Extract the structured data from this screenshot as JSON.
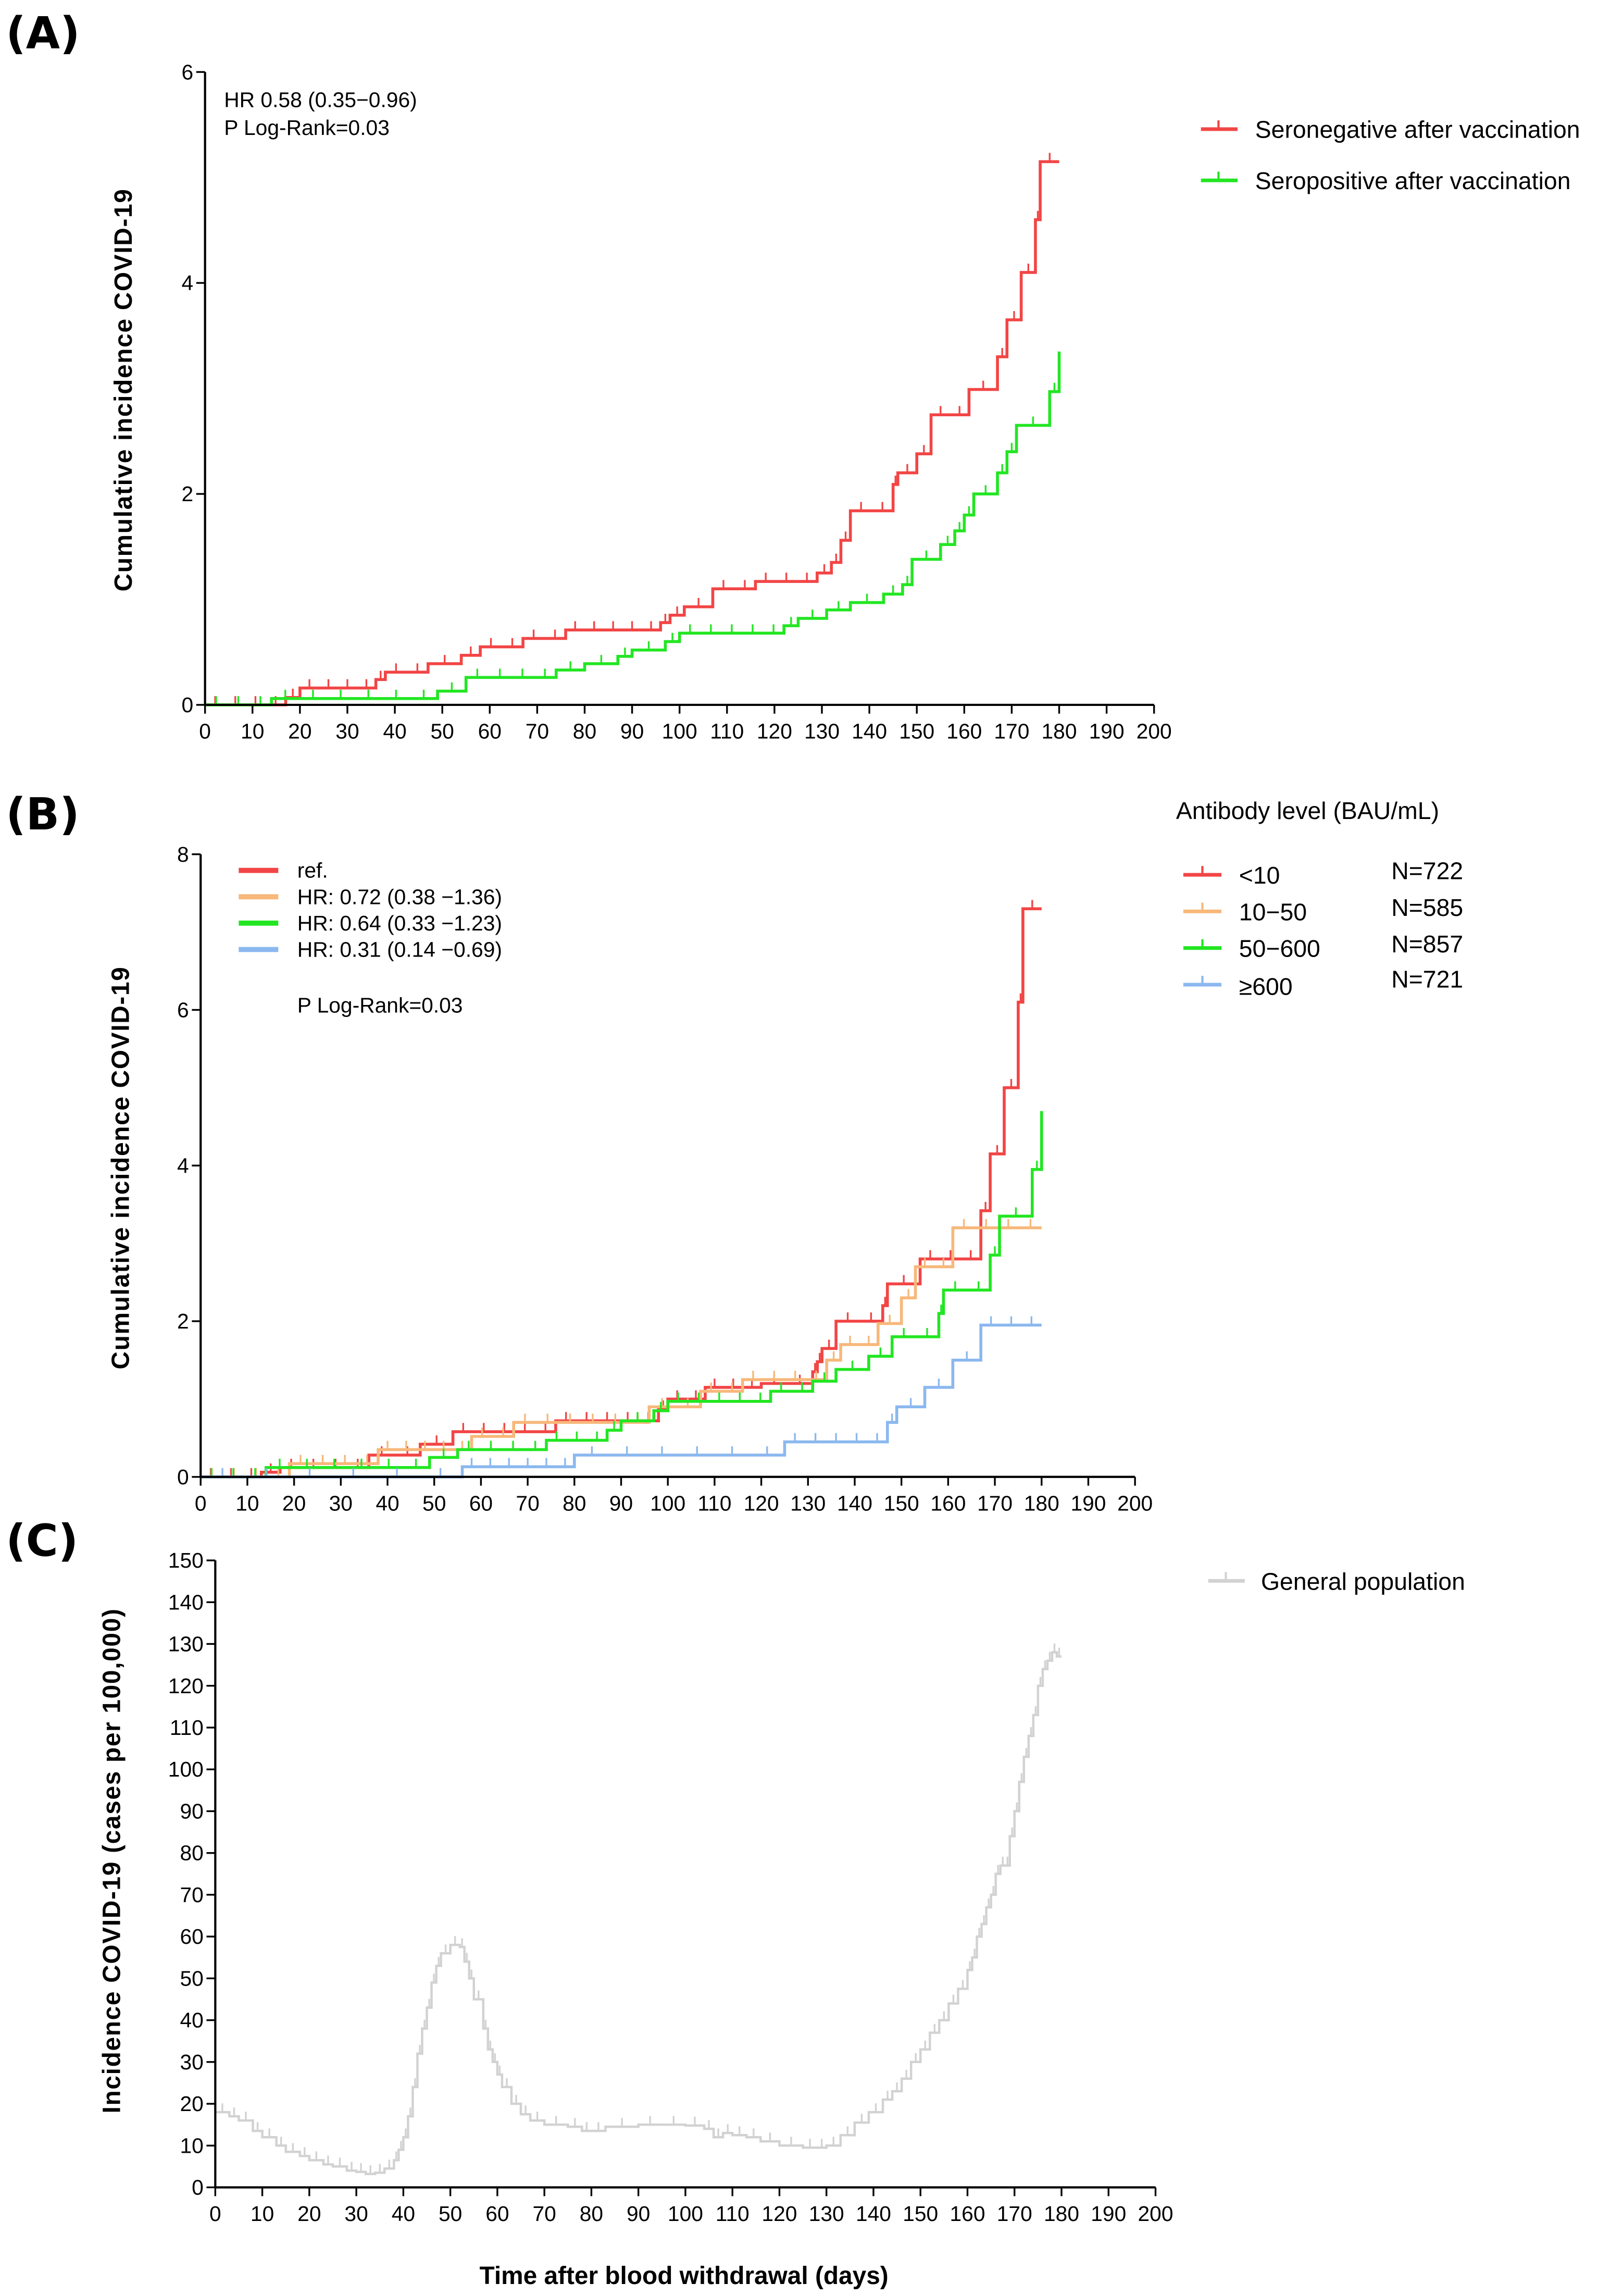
{
  "chart_data": [
    {
      "type": "line",
      "panel": "(A)",
      "title": "",
      "xlabel": "",
      "ylabel": "Cumulative incidence COVID-19",
      "xlim": [
        0,
        200
      ],
      "ylim": [
        0,
        6
      ],
      "xticks": [
        0,
        10,
        20,
        30,
        40,
        50,
        60,
        70,
        80,
        90,
        100,
        110,
        120,
        130,
        140,
        150,
        160,
        170,
        180,
        190,
        200
      ],
      "yticks": [
        0,
        2,
        4,
        6
      ],
      "grid": false,
      "annotations": [
        "HR 0.58 (0.35−0.96)",
        "P Log-Rank=0.03"
      ],
      "legend_position": "top-right",
      "series": [
        {
          "name": "Seronegative after vaccination",
          "color": "#f24545",
          "x": [
            0,
            17,
            20,
            36,
            38,
            47,
            54,
            58,
            67,
            76,
            96,
            98,
            101,
            107,
            116,
            129,
            132,
            134,
            136,
            145,
            146,
            150,
            153,
            161,
            167,
            169,
            172,
            175,
            176,
            180
          ],
          "y": [
            0,
            0.07,
            0.16,
            0.24,
            0.31,
            0.39,
            0.47,
            0.55,
            0.63,
            0.71,
            0.78,
            0.85,
            0.93,
            1.1,
            1.17,
            1.25,
            1.35,
            1.56,
            1.84,
            2.09,
            2.2,
            2.38,
            2.75,
            2.99,
            3.3,
            3.65,
            4.1,
            4.6,
            5.15,
            5.15
          ]
        },
        {
          "name": "Seropositive after vaccination",
          "color": "#22e622",
          "x": [
            0,
            14,
            49,
            55,
            74,
            80,
            87,
            90,
            97,
            100,
            122,
            125,
            131,
            136,
            143,
            147,
            149,
            155,
            158,
            160,
            162,
            167,
            169,
            171,
            178,
            180
          ],
          "y": [
            0,
            0.06,
            0.13,
            0.26,
            0.33,
            0.39,
            0.46,
            0.52,
            0.6,
            0.68,
            0.75,
            0.82,
            0.9,
            0.97,
            1.05,
            1.14,
            1.38,
            1.52,
            1.65,
            1.8,
            2.0,
            2.2,
            2.4,
            2.65,
            2.97,
            3.35
          ]
        }
      ]
    },
    {
      "type": "line",
      "panel": "(B)",
      "title": "",
      "xlabel": "",
      "ylabel": "Cumulative incidence COVID-19",
      "xlim": [
        0,
        200
      ],
      "ylim": [
        0,
        8
      ],
      "xticks": [
        0,
        10,
        20,
        30,
        40,
        50,
        60,
        70,
        80,
        90,
        100,
        110,
        120,
        130,
        140,
        150,
        160,
        170,
        180,
        190,
        200
      ],
      "yticks": [
        0,
        2,
        4,
        6,
        8
      ],
      "grid": false,
      "hr_legend": [
        "ref.",
        "HR: 0.72 (0.38 −1.36)",
        "HR: 0.64 (0.33 −1.23)",
        "HR: 0.31 (0.14 −0.69)"
      ],
      "annotations": [
        "P  Log-Rank=0.03"
      ],
      "legend_title": "Antibody level (BAU/mL)",
      "legend_position": "top-right",
      "series": [
        {
          "name": "<10",
          "n": "N=722",
          "color": "#f24545",
          "x": [
            0,
            13,
            17,
            36,
            47,
            54,
            76,
            98,
            100,
            108,
            120,
            131,
            132,
            133,
            136,
            146,
            147,
            154,
            167,
            169,
            172,
            175,
            176,
            180
          ],
          "y": [
            0,
            0.06,
            0.12,
            0.28,
            0.42,
            0.58,
            0.72,
            0.87,
            1.0,
            1.15,
            1.2,
            1.35,
            1.48,
            1.65,
            2.0,
            2.2,
            2.48,
            2.8,
            3.42,
            4.15,
            5.0,
            6.1,
            7.3,
            7.3
          ]
        },
        {
          "name": "10−50",
          "n": "N=585",
          "color": "#f7b87a",
          "x": [
            0,
            19,
            38,
            58,
            67,
            96,
            107,
            116,
            134,
            137,
            145,
            150,
            153,
            161,
            180
          ],
          "y": [
            0,
            0.17,
            0.35,
            0.52,
            0.7,
            0.9,
            1.1,
            1.25,
            1.5,
            1.7,
            1.97,
            2.3,
            2.7,
            3.2,
            3.2
          ]
        },
        {
          "name": "50−600",
          "n": "N=857",
          "color": "#22e622",
          "x": [
            0,
            14,
            49,
            55,
            74,
            87,
            90,
            97,
            100,
            122,
            131,
            136,
            143,
            148,
            158,
            159,
            169,
            171,
            178,
            180
          ],
          "y": [
            0,
            0.12,
            0.25,
            0.35,
            0.47,
            0.6,
            0.72,
            0.85,
            0.97,
            1.1,
            1.23,
            1.38,
            1.55,
            1.8,
            2.1,
            2.4,
            2.85,
            3.35,
            3.95,
            4.7
          ]
        },
        {
          "name": "≥600",
          "n": "N=721",
          "color": "#8bb8ef",
          "x": [
            0,
            56,
            80,
            125,
            147,
            149,
            155,
            161,
            167,
            180
          ],
          "y": [
            0,
            0.13,
            0.28,
            0.45,
            0.7,
            0.9,
            1.15,
            1.5,
            1.95,
            1.95
          ]
        }
      ]
    },
    {
      "type": "line",
      "panel": "(C)",
      "title": "",
      "xlabel": "Time after blood withdrawal (days)",
      "ylabel": "Incidence  COVID-19 (cases per 100,000)",
      "xlim": [
        0,
        200
      ],
      "ylim": [
        0,
        150
      ],
      "xticks": [
        0,
        10,
        20,
        30,
        40,
        50,
        60,
        70,
        80,
        90,
        100,
        110,
        120,
        130,
        140,
        150,
        160,
        170,
        180,
        190,
        200
      ],
      "yticks": [
        0,
        10,
        20,
        30,
        40,
        50,
        60,
        70,
        80,
        90,
        100,
        110,
        120,
        130,
        140,
        150
      ],
      "grid": false,
      "legend_position": "top-right",
      "series": [
        {
          "name": "General population",
          "color": "#d2d2d2",
          "x": [
            0,
            3,
            5,
            8,
            10,
            13,
            15,
            18,
            20,
            23,
            25,
            28,
            30,
            32,
            34,
            36,
            38,
            39,
            40,
            41,
            42,
            43,
            44,
            45,
            46,
            47,
            48,
            50,
            52,
            53,
            54,
            55,
            57,
            58,
            59,
            60,
            61,
            63,
            65,
            67,
            70,
            75,
            78,
            80,
            83,
            90,
            95,
            100,
            104,
            106,
            108,
            110,
            113,
            116,
            120,
            125,
            128,
            130,
            133,
            136,
            139,
            142,
            144,
            146,
            148,
            150,
            152,
            154,
            156,
            158,
            160,
            161,
            162,
            163,
            164,
            165,
            166,
            167,
            168,
            169,
            170,
            171,
            172,
            173,
            174,
            175,
            176,
            177,
            178,
            179,
            180
          ],
          "y": [
            18,
            17,
            16,
            13.5,
            12,
            10,
            8.5,
            7.5,
            6.5,
            5.5,
            5,
            4,
            3.7,
            3.2,
            3.5,
            4.5,
            6.5,
            9,
            12,
            17,
            24,
            32,
            38,
            43,
            49,
            53,
            56,
            58,
            57.5,
            54,
            50,
            45,
            38,
            33,
            30,
            27,
            24,
            20,
            17.5,
            16,
            15,
            14.5,
            13.5,
            13.5,
            14.5,
            15,
            15,
            14.8,
            14,
            12,
            13,
            12.5,
            12,
            11,
            10,
            9.5,
            9.5,
            10,
            12.5,
            15.5,
            18,
            21,
            23,
            26,
            30,
            33,
            37,
            40,
            44,
            47.5,
            52,
            55,
            60,
            63,
            67,
            70,
            75,
            77,
            77,
            84,
            90,
            97,
            103,
            108,
            113,
            120,
            124,
            126,
            128,
            127,
            127
          ]
        }
      ]
    }
  ]
}
